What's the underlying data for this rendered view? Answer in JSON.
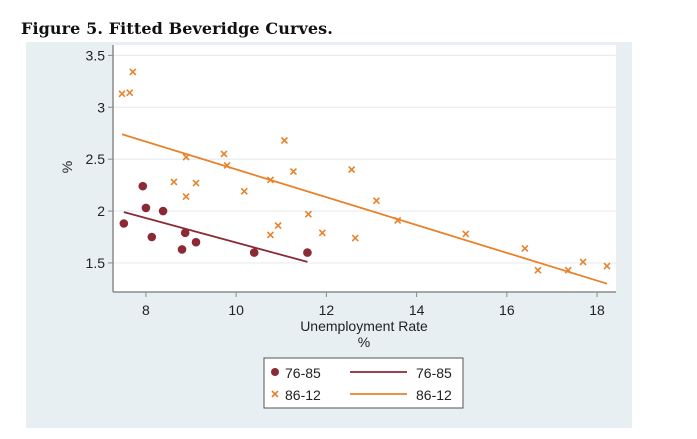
{
  "figure_title": "Figure 5. Fitted Beveridge Curves.",
  "colors": {
    "series_76_85": "#8B2A35",
    "series_86_12": "#E8822A",
    "chart_background": "#E8EFF2",
    "plot_background": "#FFFFFF",
    "gridline": "#E6EDF0",
    "axis": "#8A8A8A"
  },
  "chart_data": {
    "type": "scatter",
    "title": "Figure 5. Fitted Beveridge Curves.",
    "xlabel": "Unemployment Rate",
    "xlabel_unit": "%",
    "ylabel": "%",
    "xlim": [
      7.27,
      18.42
    ],
    "ylim": [
      1.22,
      3.6
    ],
    "xticks": [
      8,
      10,
      12,
      14,
      16,
      18
    ],
    "xtick_labels": [
      "8",
      "10",
      "12",
      "14",
      "16",
      "18"
    ],
    "yticks": [
      1.5,
      2,
      2.5,
      3,
      3.5
    ],
    "ytick_labels": [
      "1.5",
      "2",
      "2.5",
      "3",
      "3.5"
    ],
    "grid": "horizontal",
    "legend_position": "bottom-center",
    "series": [
      {
        "name": "76-85",
        "kind": "scatter",
        "marker": "circle",
        "color": "#8B2A35",
        "points": [
          [
            7.93,
            2.24
          ],
          [
            8.0,
            2.03
          ],
          [
            8.38,
            2.0
          ],
          [
            7.51,
            1.88
          ],
          [
            8.13,
            1.75
          ],
          [
            8.87,
            1.79
          ],
          [
            9.11,
            1.7
          ],
          [
            8.8,
            1.63
          ],
          [
            10.4,
            1.6
          ],
          [
            11.58,
            1.6
          ]
        ]
      },
      {
        "name": "86-12",
        "kind": "scatter",
        "marker": "x",
        "color": "#E8822A",
        "points": [
          [
            7.71,
            3.34
          ],
          [
            7.47,
            3.13
          ],
          [
            7.64,
            3.14
          ],
          [
            8.89,
            2.52
          ],
          [
            9.73,
            2.55
          ],
          [
            9.8,
            2.44
          ],
          [
            11.07,
            2.68
          ],
          [
            11.27,
            2.38
          ],
          [
            8.62,
            2.28
          ],
          [
            9.11,
            2.27
          ],
          [
            8.89,
            2.14
          ],
          [
            10.18,
            2.19
          ],
          [
            10.76,
            2.3
          ],
          [
            10.76,
            1.77
          ],
          [
            10.93,
            1.86
          ],
          [
            12.56,
            2.4
          ],
          [
            13.11,
            2.1
          ],
          [
            13.58,
            1.91
          ],
          [
            11.6,
            1.97
          ],
          [
            11.91,
            1.79
          ],
          [
            12.64,
            1.74
          ],
          [
            15.09,
            1.78
          ],
          [
            16.4,
            1.64
          ],
          [
            16.69,
            1.43
          ],
          [
            17.36,
            1.43
          ],
          [
            17.69,
            1.51
          ],
          [
            18.22,
            1.47
          ]
        ]
      },
      {
        "name": "76-85",
        "kind": "fitted_line",
        "color": "#8B2A35",
        "points": [
          [
            7.51,
            1.99
          ],
          [
            11.58,
            1.51
          ]
        ]
      },
      {
        "name": "86-12",
        "kind": "fitted_line",
        "color": "#E8822A",
        "points": [
          [
            7.47,
            2.74
          ],
          [
            18.22,
            1.3
          ]
        ]
      }
    ],
    "legend": [
      {
        "label": "76-85",
        "symbol": "circle",
        "color": "#8B2A35"
      },
      {
        "label": "76-85",
        "symbol": "line",
        "color": "#8B2A35"
      },
      {
        "label": "86-12",
        "symbol": "x",
        "color": "#E8822A"
      },
      {
        "label": "86-12",
        "symbol": "line",
        "color": "#E8822A"
      }
    ]
  }
}
